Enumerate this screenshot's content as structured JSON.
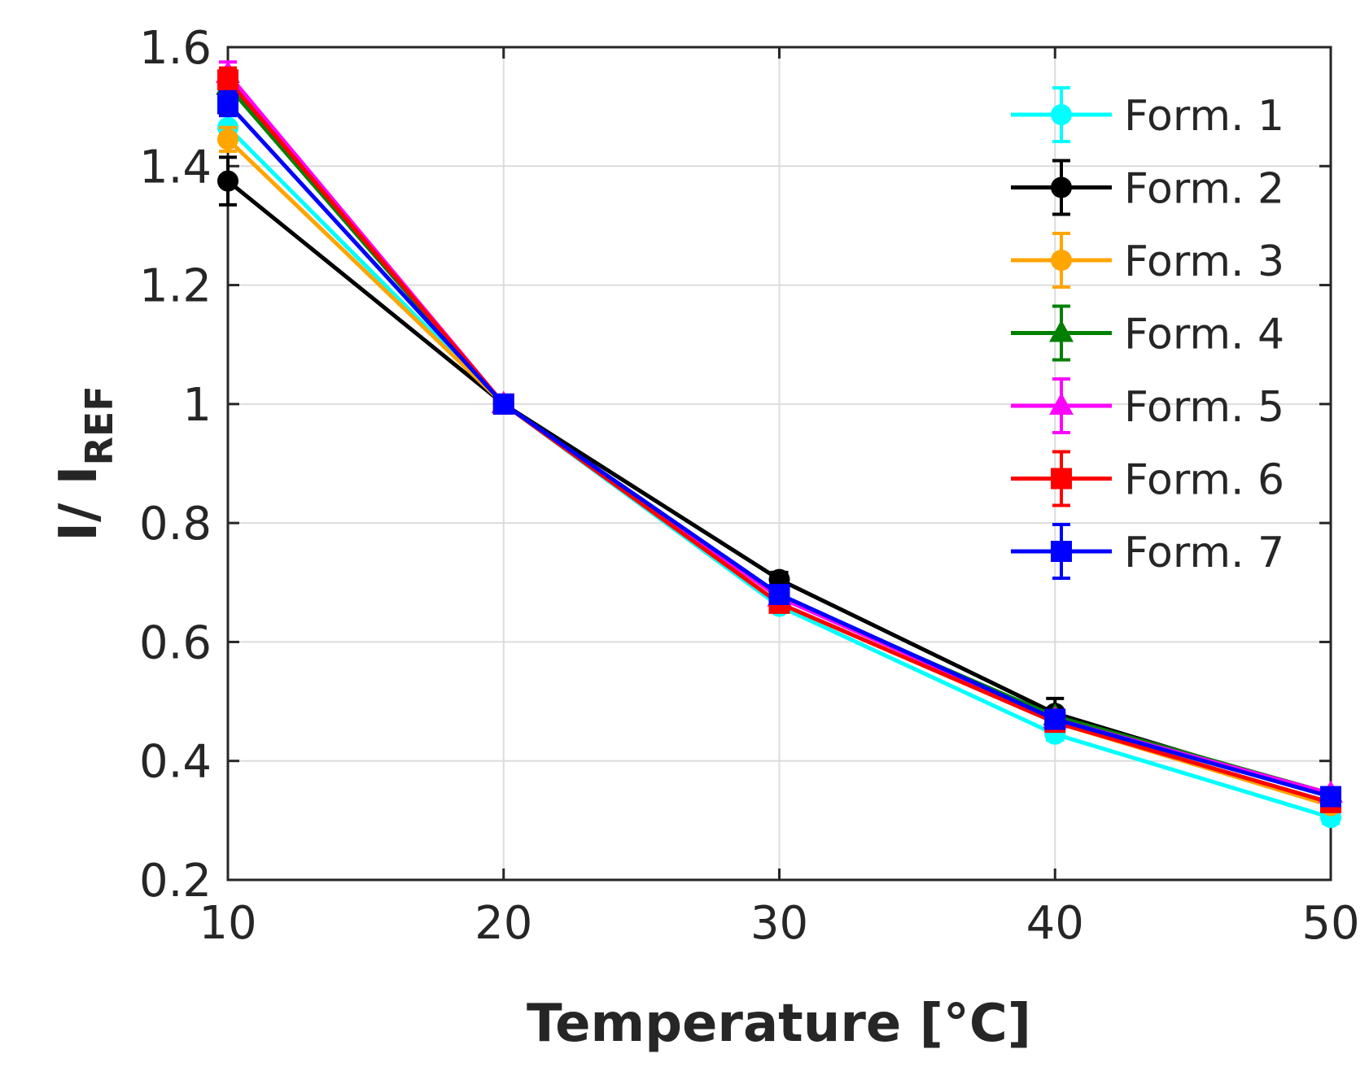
{
  "chart_data": {
    "type": "line",
    "title": "",
    "xlabel": "Temperature [°C]",
    "ylabel": {
      "main": "I/ I",
      "subscript": "REF"
    },
    "x": [
      10,
      20,
      30,
      40,
      50
    ],
    "xlim": [
      10,
      50
    ],
    "ylim": [
      0.2,
      1.6
    ],
    "xticks": [
      10,
      20,
      30,
      40,
      50
    ],
    "xtick_labels": [
      "10",
      "20",
      "30",
      "40",
      "50"
    ],
    "yticks": [
      0.2,
      0.4,
      0.6,
      0.8,
      1.0,
      1.2,
      1.4,
      1.6
    ],
    "ytick_labels": [
      "0.2",
      "0.4",
      "0.6",
      "0.8",
      "1",
      "1.2",
      "1.4",
      "1.6"
    ],
    "grid": true,
    "legend_position": "top-right",
    "series": [
      {
        "name": "Form. 1",
        "color": "#00ffff",
        "marker": "circle",
        "values": [
          1.465,
          1.0,
          0.66,
          0.445,
          0.305
        ],
        "errors": [
          0.02,
          0.0,
          0.008,
          0.01,
          0.01
        ]
      },
      {
        "name": "Form. 2",
        "color": "#000000",
        "marker": "circle",
        "values": [
          1.375,
          1.0,
          0.705,
          0.48,
          0.34
        ],
        "errors": [
          0.04,
          0.0,
          0.012,
          0.025,
          0.01
        ]
      },
      {
        "name": "Form. 3",
        "color": "#ffa500",
        "marker": "circle",
        "values": [
          1.445,
          1.0,
          0.665,
          0.465,
          0.325
        ],
        "errors": [
          0.02,
          0.0,
          0.008,
          0.01,
          0.01
        ]
      },
      {
        "name": "Form. 4",
        "color": "#008000",
        "marker": "triangle",
        "values": [
          1.535,
          1.0,
          0.675,
          0.475,
          0.345
        ],
        "errors": [
          0.02,
          0.0,
          0.008,
          0.01,
          0.01
        ]
      },
      {
        "name": "Form. 5",
        "color": "#ff00ff",
        "marker": "triangle",
        "values": [
          1.555,
          1.0,
          0.675,
          0.47,
          0.345
        ],
        "errors": [
          0.02,
          0.0,
          0.008,
          0.01,
          0.01
        ]
      },
      {
        "name": "Form. 6",
        "color": "#ff0000",
        "marker": "square",
        "values": [
          1.545,
          1.0,
          0.665,
          0.465,
          0.33
        ],
        "errors": [
          0.02,
          0.0,
          0.008,
          0.01,
          0.01
        ]
      },
      {
        "name": "Form. 7",
        "color": "#0000ff",
        "marker": "square",
        "values": [
          1.505,
          1.0,
          0.68,
          0.47,
          0.34
        ],
        "errors": [
          0.02,
          0.0,
          0.008,
          0.01,
          0.01
        ]
      }
    ]
  }
}
